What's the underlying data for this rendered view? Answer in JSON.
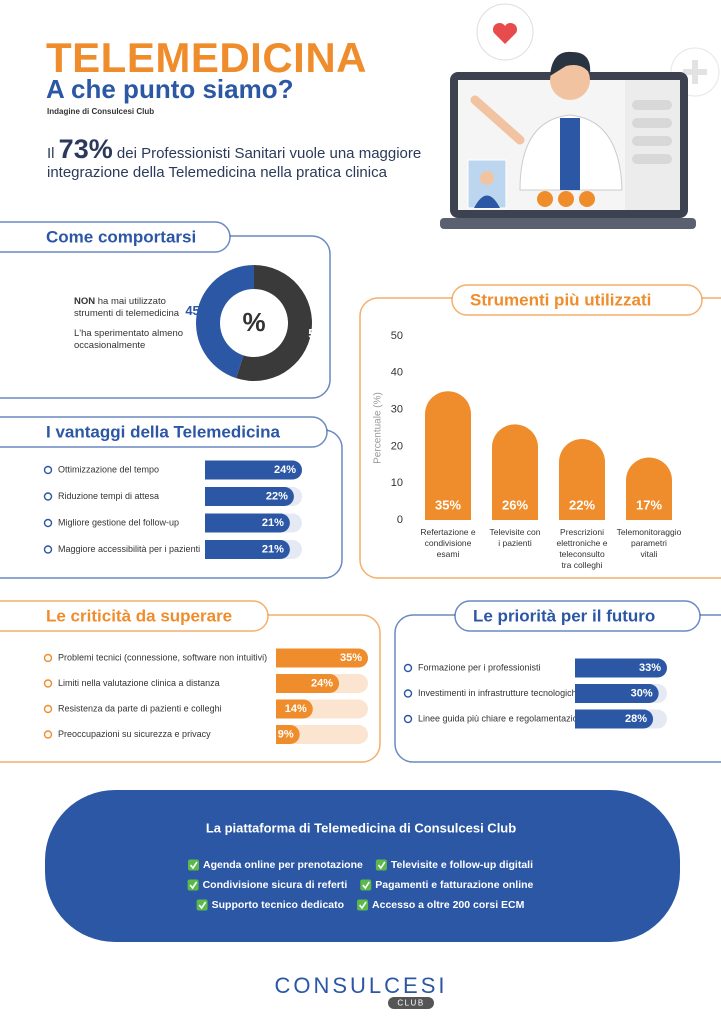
{
  "header": {
    "title": "TELEMEDICINA",
    "subtitle": "A che punto siamo?",
    "source": "Indagine di Consulcesi Club",
    "stat_prefix": "Il",
    "stat_value": "73%",
    "stat_text": "dei Professionisti Sanitari vuole una maggiore integrazione della Telemedicina nella pratica clinica"
  },
  "usage": {
    "title": "Come comportarsi",
    "center_label": "%",
    "segments": [
      {
        "label_bold": "NON",
        "label": "ha mai utilizzato strumenti di telemedicina",
        "value": 55,
        "color": "#3a3a3a"
      },
      {
        "label": "L'ha sperimentato almeno occasionalmente",
        "value": 45,
        "color": "#2b57a5"
      }
    ]
  },
  "benefits": {
    "title": "I vantaggi della Telemedicina",
    "color": "#2b57a5",
    "track_color": "#e4e9f3",
    "items": [
      {
        "label": "Ottimizzazione del tempo",
        "value": 24,
        "value_label": "24%"
      },
      {
        "label": "Riduzione tempi di attesa",
        "value": 22,
        "value_label": "22%"
      },
      {
        "label": "Migliore gestione del follow-up",
        "value": 21,
        "value_label": "21%"
      },
      {
        "label": "Maggiore accessibilità per i pazienti",
        "value": 21,
        "value_label": "21%"
      }
    ]
  },
  "tools": {
    "type": "bar",
    "title": "Strumenti più utilizzati",
    "y_label": "Percentuale (%)",
    "color": "#ef8d2c",
    "ylim": [
      0,
      50
    ],
    "yticks": [
      0,
      10,
      20,
      30,
      40,
      50
    ],
    "categories": [
      "Refertazione e condivisione esami",
      "Televisite con i pazienti",
      "Prescrizioni elettroniche e teleconsulto tra colleghi",
      "Telemonitoraggio parametri vitali"
    ],
    "values": [
      35,
      26,
      22,
      17
    ],
    "value_labels": [
      "35%",
      "26%",
      "22%",
      "17%"
    ]
  },
  "challenges": {
    "title": "Le criticità da superare",
    "color": "#ef8d2c",
    "track_color": "#fbe5d0",
    "items": [
      {
        "label": "Problemi tecnici (connessione, software non intuitivi)",
        "value": 35,
        "value_label": "35%"
      },
      {
        "label": "Limiti nella valutazione clinica a distanza",
        "value": 24,
        "value_label": "24%"
      },
      {
        "label": "Resistenza da parte di pazienti e colleghi",
        "value": 14,
        "value_label": "14%"
      },
      {
        "label": "Preoccupazioni su sicurezza e privacy",
        "value": 9,
        "value_label": "9%"
      }
    ]
  },
  "priorities": {
    "title": "Le priorità per il futuro",
    "color": "#2b57a5",
    "track_color": "#e4e9f3",
    "items": [
      {
        "label": "Formazione per i professionisti",
        "value": 33,
        "value_label": "33%"
      },
      {
        "label": "Investimenti in infrastrutture tecnologiche",
        "value": 30,
        "value_label": "30%"
      },
      {
        "label": "Linee guida più chiare e regolamentazione",
        "value": 28,
        "value_label": "28%"
      }
    ]
  },
  "platform": {
    "title": "La piattaforma di Telemedicina di Consulcesi Club",
    "features": [
      "Agenda online per prenotazione",
      "Televisite e follow-up digitali",
      "Condivisione sicura di referti",
      "Pagamenti e fatturazione online",
      "Supporto tecnico dedicato",
      "Accesso a oltre 200 corsi ECM"
    ]
  },
  "footer": {
    "logo": "CONSULCESI",
    "logo_sub": "CLUB"
  }
}
